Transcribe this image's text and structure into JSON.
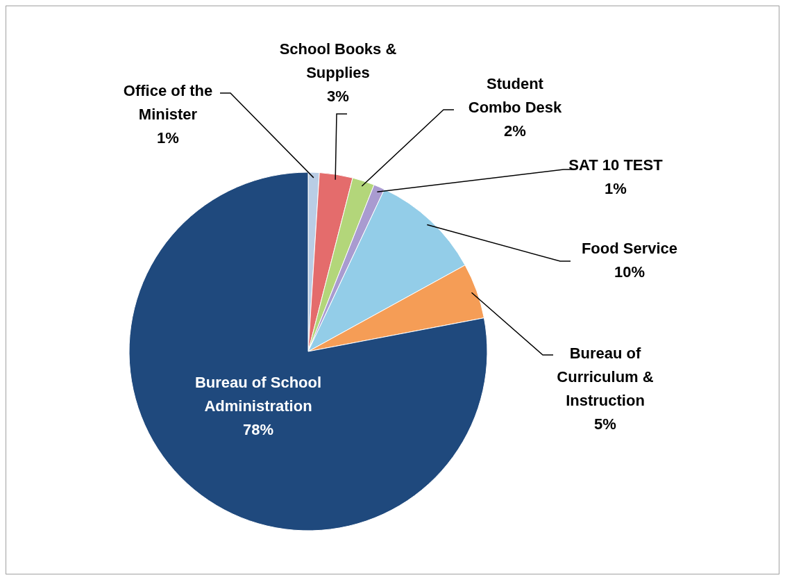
{
  "chart_data": {
    "type": "pie",
    "categories": [
      "Office of the Minister",
      "School Books & Supplies",
      "Student Combo Desk",
      "SAT 10 TEST",
      "Food Service",
      "Bureau of Curriculum & Instruction",
      "Bureau of School Administration"
    ],
    "values": [
      1,
      3,
      2,
      1,
      10,
      5,
      78
    ],
    "value_labels": [
      "1%",
      "3%",
      "2%",
      "1%",
      "10%",
      "5%",
      "78%"
    ],
    "colors": [
      "#b9cde5",
      "#e46c6c",
      "#b3d67a",
      "#a99bd0",
      "#93cde8",
      "#f59d56",
      "#1f497d"
    ],
    "legend": false
  }
}
